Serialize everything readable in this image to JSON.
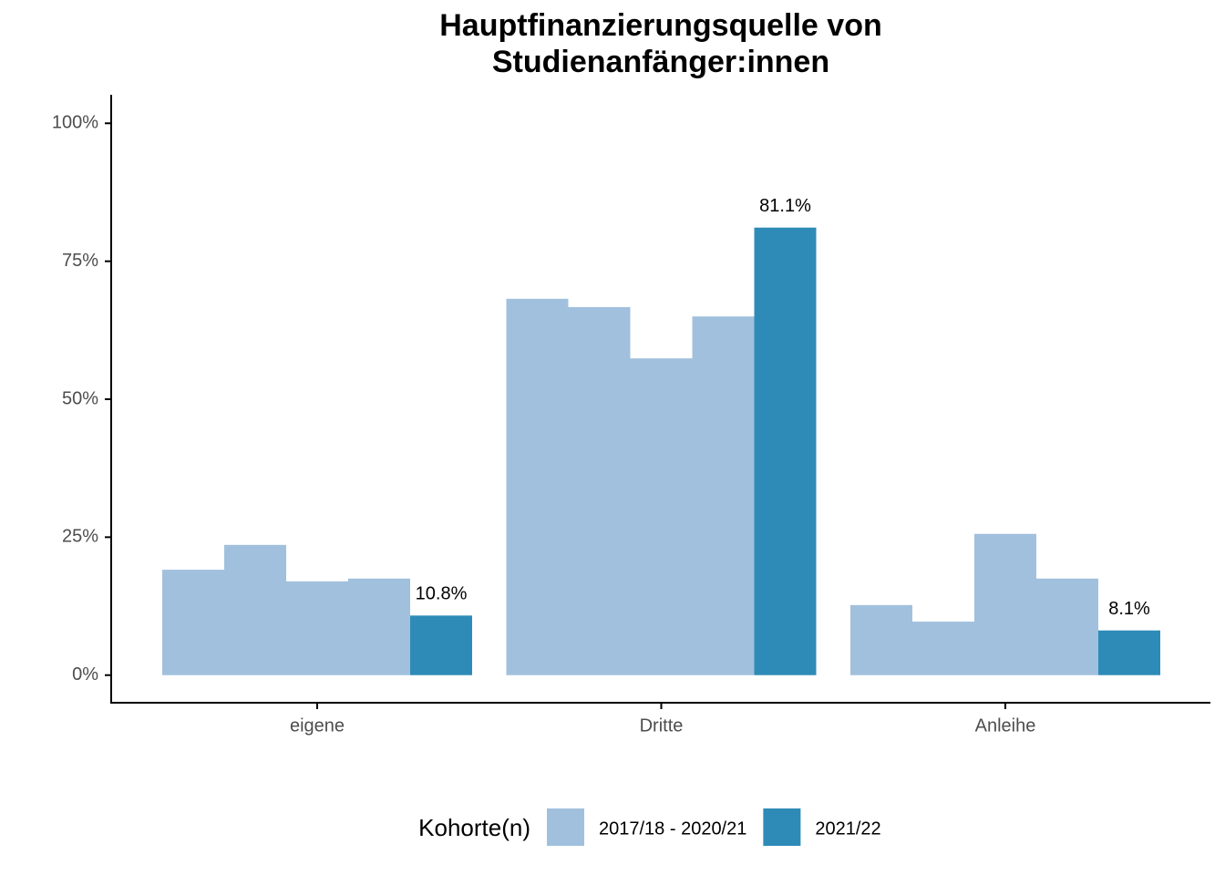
{
  "chart_data": {
    "type": "bar",
    "title": "Hauptfinanzierungsquelle von",
    "subtitle": "Studienanfänger:innen",
    "categories": [
      "eigene",
      "Dritte",
      "Anleihe"
    ],
    "series": [
      {
        "name": "2017/18 - 2020/21",
        "color": "#a1c0dd",
        "values": [
          [
            19.1,
            23.6,
            17.0,
            17.5
          ],
          [
            68.2,
            66.7,
            57.4,
            65.0
          ],
          [
            12.7,
            9.7,
            25.6,
            17.5
          ]
        ]
      },
      {
        "name": "2021/22",
        "color": "#2e8bb7",
        "values": [
          10.8,
          81.1,
          8.1
        ],
        "value_labels": [
          "10.8%",
          "81.1%",
          "8.1%"
        ]
      }
    ],
    "ylim": [
      -5,
      105
    ],
    "yticks": [
      {
        "value": 0,
        "label": "0%"
      },
      {
        "value": 25,
        "label": "25%"
      },
      {
        "value": 50,
        "label": "50%"
      },
      {
        "value": 75,
        "label": "75%"
      },
      {
        "value": 100,
        "label": "100%"
      }
    ],
    "legend_title": "Kohorte(n)",
    "legend_position": "bottom",
    "grid": false
  }
}
